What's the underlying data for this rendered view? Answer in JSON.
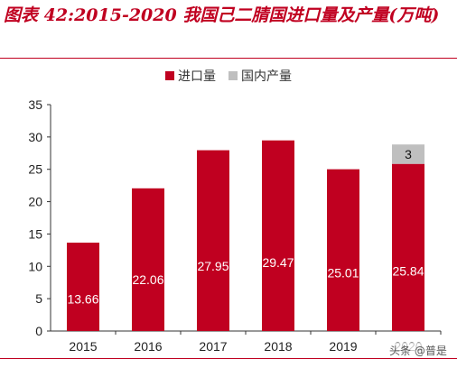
{
  "title": "图表 42:2015-2020 我国己二腈国进口量及产量(万吨)",
  "watermark": "头条 @普是",
  "colors": {
    "import": "#c00020",
    "domestic": "#bfbfbf",
    "accent": "#c00020"
  },
  "chart_data": {
    "type": "bar",
    "stacked": true,
    "categories": [
      "2015",
      "2016",
      "2017",
      "2018",
      "2019",
      "2020"
    ],
    "series": [
      {
        "name": "进口量",
        "values": [
          13.66,
          22.06,
          27.95,
          29.47,
          25.01,
          25.84
        ],
        "labels": [
          "13.66",
          "22.06",
          "27.95",
          "29.47",
          "25.01",
          "25.84"
        ]
      },
      {
        "name": "国内产量",
        "values": [
          0,
          0,
          0,
          0,
          0,
          3
        ],
        "labels": [
          "",
          "",
          "",
          "",
          "",
          "3"
        ]
      }
    ],
    "ylim": [
      0,
      35
    ],
    "yticks": [
      "0",
      "5",
      "10",
      "15",
      "20",
      "25",
      "30",
      "35"
    ],
    "legend": "top-center",
    "grid": false
  }
}
